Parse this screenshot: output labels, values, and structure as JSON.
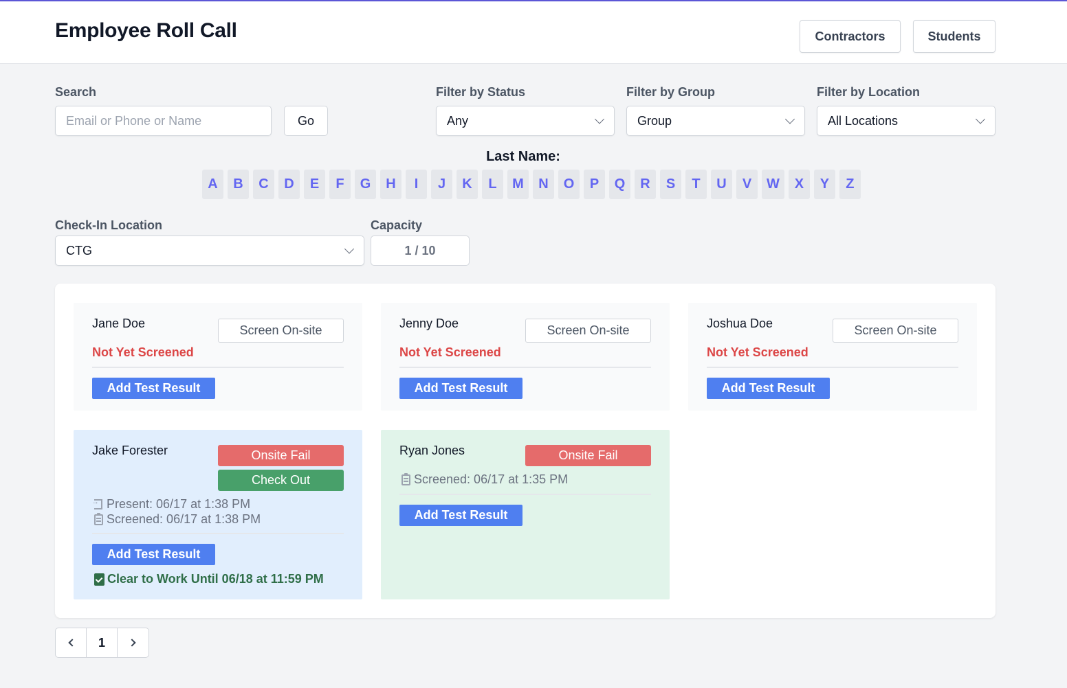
{
  "header": {
    "title": "Employee Roll Call",
    "buttons": [
      "Contractors",
      "Students"
    ]
  },
  "filters": {
    "search_label": "Search",
    "search_placeholder": "Email or Phone or Name",
    "go_label": "Go",
    "status_label": "Filter by Status",
    "status_value": "Any",
    "group_label": "Filter by Group",
    "group_value": "Group",
    "location_label": "Filter by Location",
    "location_value": "All Locations"
  },
  "lastname": {
    "label": "Last Name:",
    "letters": [
      "A",
      "B",
      "C",
      "D",
      "E",
      "F",
      "G",
      "H",
      "I",
      "J",
      "K",
      "L",
      "M",
      "N",
      "O",
      "P",
      "Q",
      "R",
      "S",
      "T",
      "U",
      "V",
      "W",
      "X",
      "Y",
      "Z"
    ]
  },
  "checkin": {
    "label": "Check-In Location",
    "value": "CTG",
    "capacity_label": "Capacity",
    "capacity_value": "1 / 10"
  },
  "cards": [
    {
      "name": "Jane Doe",
      "screen_label": "Screen On-site",
      "status": "Not Yet Screened",
      "add_label": "Add Test Result"
    },
    {
      "name": "Jenny Doe",
      "screen_label": "Screen On-site",
      "status": "Not Yet Screened",
      "add_label": "Add Test Result"
    },
    {
      "name": "Joshua Doe",
      "screen_label": "Screen On-site",
      "status": "Not Yet Screened",
      "add_label": "Add Test Result"
    },
    {
      "name": "Jake Forester",
      "fail_label": "Onsite Fail",
      "checkout_label": "Check Out",
      "present": "Present: 06/17 at 1:38 PM",
      "screened": "Screened: 06/17 at 1:38 PM",
      "add_label": "Add Test Result",
      "clear": "Clear to Work Until 06/18 at 11:59 PM"
    },
    {
      "name": "Ryan Jones",
      "fail_label": "Onsite Fail",
      "screened": "Screened: 06/17 at 1:35 PM",
      "add_label": "Add Test Result"
    }
  ],
  "pagination": {
    "current": "1"
  },
  "colors": {
    "accent": "#6366f1",
    "primary_button": "#4f7ff0",
    "danger": "#dc4646",
    "fail_button": "#e56b6b",
    "success_button": "#48a06a",
    "clear_text": "#2f6e48"
  },
  "icons": {
    "present": "door-enter-icon",
    "screened": "clipboard-icon",
    "clear": "clipboard-check-icon",
    "select": "chevron-down-icon",
    "prev": "chevron-left-icon",
    "next": "chevron-right-icon"
  }
}
